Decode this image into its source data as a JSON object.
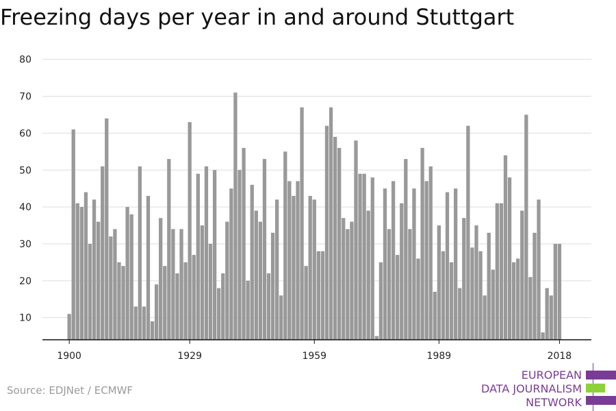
{
  "title": "Freezing days per year in and around Stuttgart",
  "source": "Source: EDJNet / ECMWF",
  "logo": {
    "lines": [
      "EUROPEAN",
      "DATA JOURNALISM",
      "NETWORK"
    ],
    "colors": {
      "purple": "#7a3b94",
      "green": "#8fd13a"
    }
  },
  "colors": {
    "bar": "#999999",
    "grid": "#dddddd",
    "axis": "#111111"
  },
  "chart_data": {
    "type": "bar",
    "title": "Freezing days per year in and around Stuttgart",
    "xlabel": "",
    "ylabel": "",
    "ylim": [
      4,
      80
    ],
    "yticks": [
      10,
      20,
      30,
      40,
      50,
      60,
      70,
      80
    ],
    "xtick_labels": [
      "1900",
      "1929",
      "1959",
      "1989",
      "2018"
    ],
    "x_start": 1900,
    "x_end": 2018,
    "values": [
      11,
      61,
      41,
      40,
      44,
      30,
      42,
      36,
      51,
      64,
      32,
      34,
      25,
      24,
      40,
      38,
      13,
      51,
      13,
      43,
      9,
      19,
      37,
      24,
      53,
      34,
      22,
      34,
      25,
      63,
      27,
      49,
      35,
      51,
      30,
      50,
      18,
      22,
      36,
      45,
      71,
      50,
      56,
      20,
      46,
      39,
      36,
      53,
      22,
      33,
      42,
      16,
      55,
      47,
      43,
      47,
      67,
      24,
      43,
      42,
      28,
      28,
      62,
      67,
      59,
      56,
      37,
      34,
      36,
      58,
      49,
      49,
      39,
      48,
      5,
      25,
      45,
      34,
      47,
      27,
      41,
      53,
      34,
      45,
      26,
      56,
      47,
      51,
      17,
      35,
      28,
      44,
      25,
      45,
      18,
      37,
      62,
      29,
      35,
      28,
      16,
      33,
      23,
      41,
      41,
      54,
      48,
      25,
      26,
      39,
      65,
      21,
      33,
      42,
      6,
      18,
      16,
      30,
      30
    ]
  }
}
